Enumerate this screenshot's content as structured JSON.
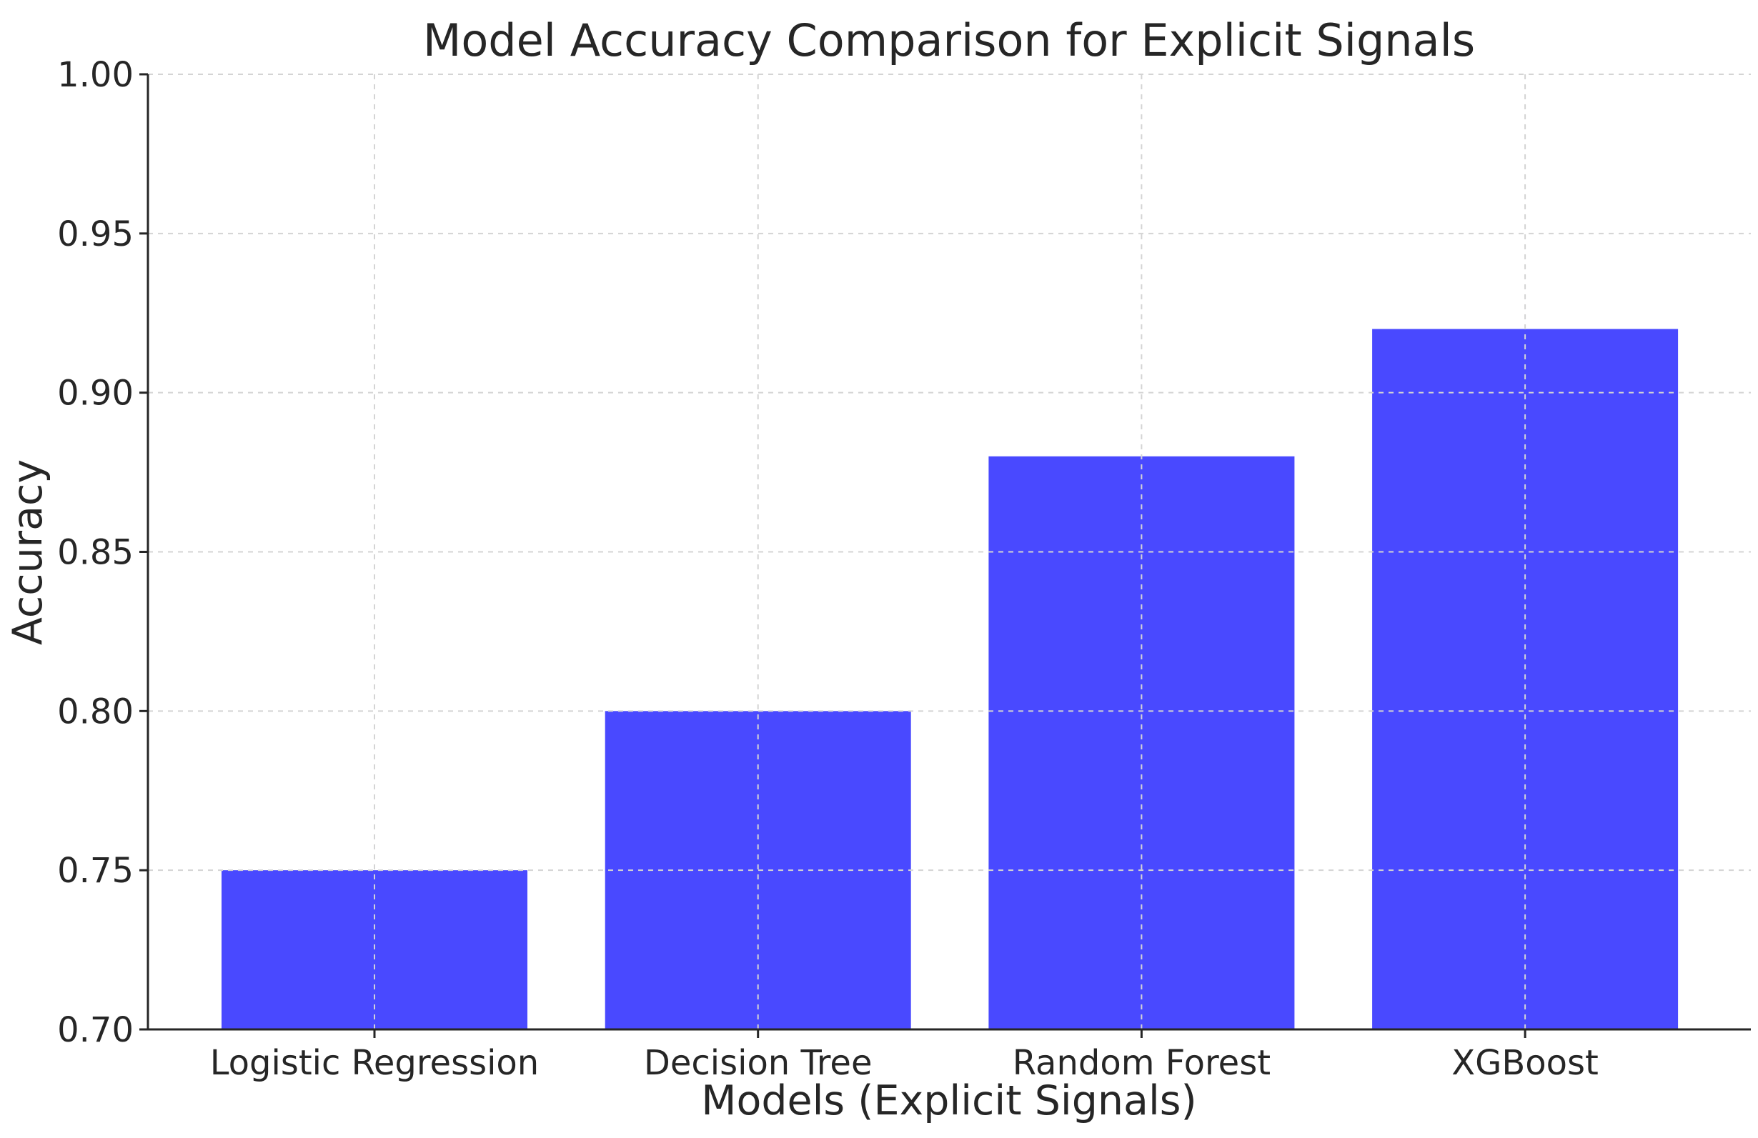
{
  "chart_data": {
    "type": "bar",
    "title": "Model Accuracy Comparison for Explicit Signals",
    "xlabel": "Models (Explicit Signals)",
    "ylabel": "Accuracy",
    "categories": [
      "Logistic Regression",
      "Decision Tree",
      "Random Forest",
      "XGBoost"
    ],
    "values": [
      0.75,
      0.8,
      0.88,
      0.92
    ],
    "ylim": [
      0.7,
      1.0
    ],
    "yticks": [
      "0.70",
      "0.75",
      "0.80",
      "0.85",
      "0.90",
      "0.95",
      "1.00"
    ],
    "bar_color": "#4949ff",
    "grid": true
  }
}
